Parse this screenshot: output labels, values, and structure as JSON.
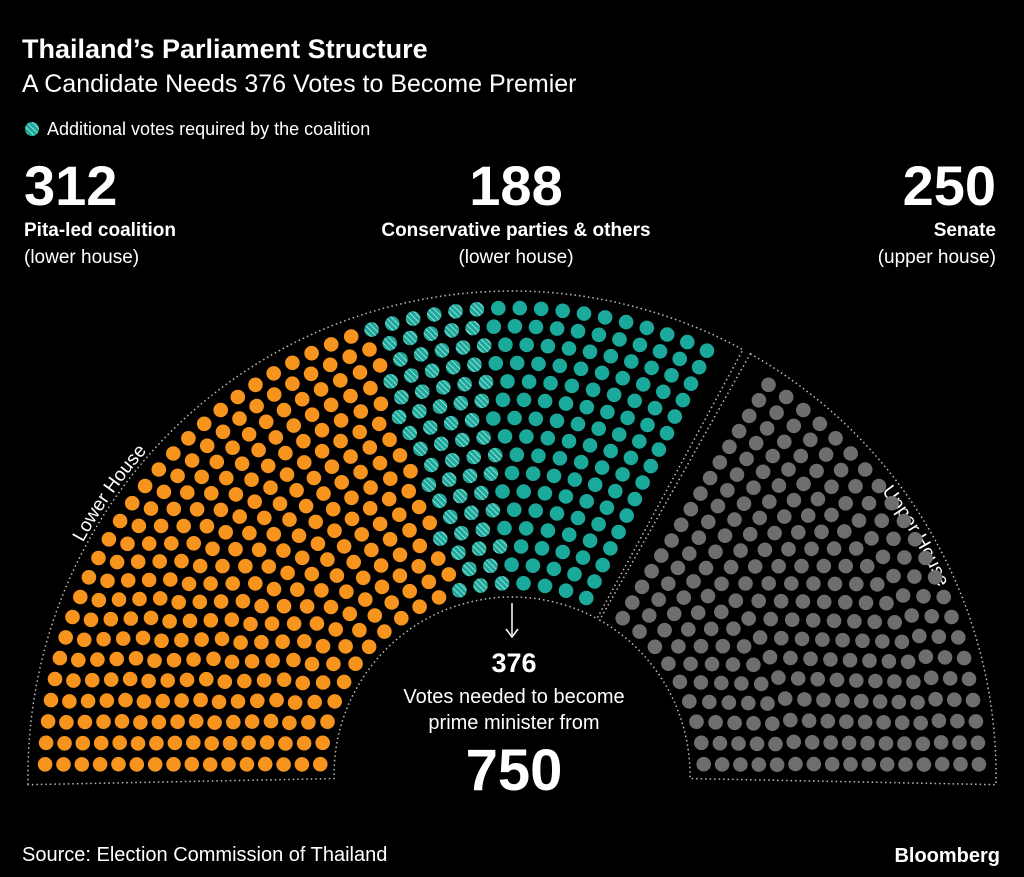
{
  "chart_data": {
    "type": "parliament",
    "title": "Thailand’s Parliament Structure",
    "subtitle": "A Candidate Needs 376 Votes to Become Premier",
    "series": [
      {
        "name": "Pita-led coalition",
        "detail": "(lower house)",
        "color": "#f7941d",
        "value": 312,
        "house": "lower"
      },
      {
        "name": "Conservative parties & others",
        "detail": "(lower house)",
        "color": "#1aa99b",
        "value": 188,
        "house": "lower"
      },
      {
        "name": "Senate",
        "detail": "(upper house)",
        "color": "#6e6e6e",
        "value": 250,
        "house": "upper"
      }
    ],
    "additional": {
      "label": "Additional votes required by the coalition",
      "value": 64
    },
    "threshold": {
      "value": 376,
      "label_line1": "Votes needed to become",
      "label_line2": "prime minister from"
    },
    "total": 750,
    "house_labels": {
      "lower": "Lower House",
      "upper": "Upper House"
    },
    "source": "Source: Election Commission of Thailand",
    "brand": "Bloomberg"
  }
}
